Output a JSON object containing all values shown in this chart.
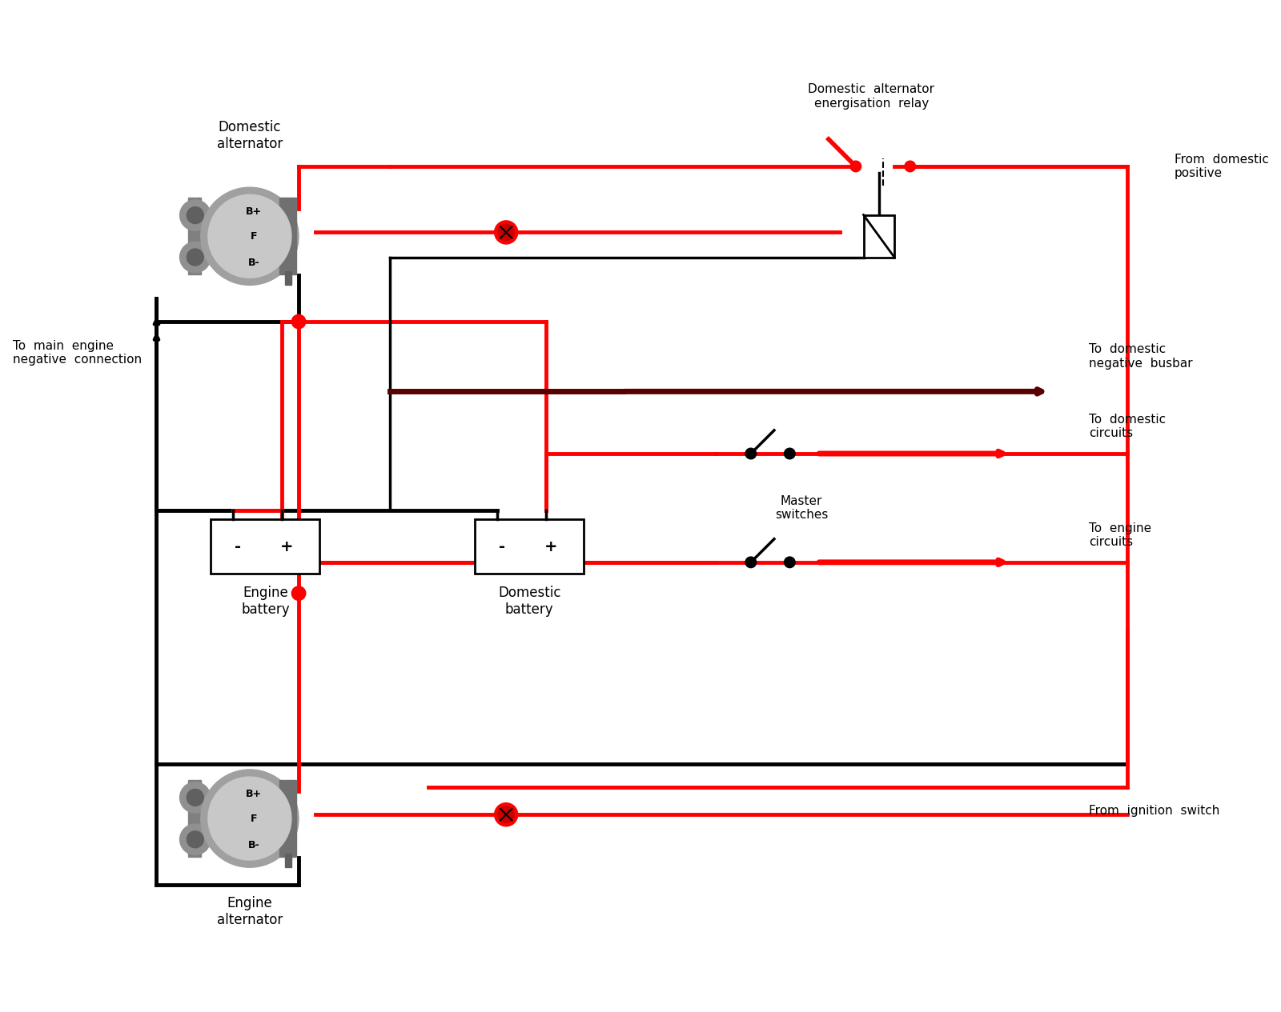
{
  "bg_color": "#ffffff",
  "line_color_red": "#ff0000",
  "line_color_black": "#000000",
  "line_color_darkred": "#5a0000",
  "fig_width": 16.0,
  "fig_height": 12.65,
  "labels": {
    "domestic_alt": "Domestic\nalternator",
    "engine_alt": "Engine\nalternator",
    "engine_battery": "Engine\nbattery",
    "domestic_battery": "Domestic\nbattery",
    "energisation_relay": "Domestic  alternator\nenergisation  relay",
    "from_domestic_positive": "From  domestic\npositive",
    "to_main_engine_neg": "To  main  engine\nnegative  connection",
    "to_domestic_neg_busbar": "To  domestic\nnegative  busbar",
    "to_domestic_circuits": "To  domestic\ncircuits",
    "to_engine_circuits": "To  engine\ncircuits",
    "master_switches": "Master\nswitches",
    "from_ignition_switch": "From  ignition  switch",
    "B_plus": "B+",
    "F": "F",
    "B_minus": "B-"
  }
}
